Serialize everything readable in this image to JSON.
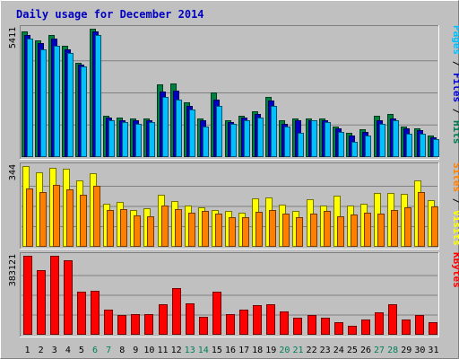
{
  "chart_data": {
    "type": "bar",
    "title": "Daily usage for December 2014",
    "categories": [
      "1",
      "2",
      "3",
      "4",
      "5",
      "6",
      "7",
      "8",
      "9",
      "10",
      "11",
      "12",
      "13",
      "14",
      "15",
      "16",
      "17",
      "18",
      "19",
      "20",
      "21",
      "22",
      "23",
      "24",
      "25",
      "26",
      "27",
      "28",
      "29",
      "30",
      "31"
    ],
    "weekend_days": [
      "6",
      "7",
      "13",
      "14",
      "20",
      "21",
      "27",
      "28"
    ],
    "panels": [
      {
        "id": "top",
        "max_label": "5411",
        "ymax": 5411,
        "legend": [
          {
            "text": "Pages",
            "color": "#00c0ff"
          },
          {
            "text": " / ",
            "color": "#000000"
          },
          {
            "text": "Files",
            "color": "#0000d8"
          },
          {
            "text": " / ",
            "color": "#000000"
          },
          {
            "text": "Hits",
            "color": "#007850"
          }
        ],
        "series": [
          {
            "name": "Hits",
            "color": "#008040",
            "values": [
              5284,
              4934,
              5143,
              4680,
              3969,
              5411,
              1734,
              1666,
              1630,
              1630,
              3056,
              3110,
              2293,
              1630,
              2718,
              1561,
              1734,
              1921,
              2524,
              1554,
              1630,
              1630,
              1630,
              1283,
              1038,
              1163,
              1734,
              1821,
              1280,
              1211,
              915
            ]
          },
          {
            "name": "Files",
            "color": "#0000c0",
            "values": [
              5143,
              4793,
              5003,
              4535,
              3881,
              5284,
              1651,
              1561,
              1561,
              1561,
              2774,
              2811,
              2146,
              1548,
              2418,
              1480,
              1651,
              1821,
              2392,
              1411,
              1568,
              1561,
              1561,
              1211,
              915,
              1078,
              1561,
              1630,
              1211,
              1140,
              845
            ]
          },
          {
            "name": "Pages",
            "color": "#00c0ff",
            "values": [
              5003,
              4535,
              4680,
              4396,
              3804,
              5143,
              1561,
              1480,
              1411,
              1480,
              2524,
              2418,
              1991,
              1283,
              2146,
              1411,
              1561,
              1651,
              2146,
              1283,
              1038,
              1561,
              1480,
              1078,
              656,
              915,
              1411,
              1561,
              970,
              970,
              775
            ]
          }
        ]
      },
      {
        "id": "middle",
        "max_label": "344",
        "ymax": 344,
        "legend": [
          {
            "text": "Sites",
            "color": "#ff8000"
          },
          {
            "text": " / ",
            "color": "#000000"
          },
          {
            "text": "Visits",
            "color": "#ffff00"
          }
        ],
        "series": [
          {
            "name": "Visits",
            "color": "#ffff00",
            "values": [
              344,
              318,
              337,
              334,
              284,
              312,
              185,
              193,
              158,
              163,
              221,
              195,
              176,
              167,
              158,
              152,
              147,
              205,
              212,
              181,
              153,
              202,
              174,
              216,
              176,
              182,
              229,
              230,
              224,
              284,
              200
            ]
          },
          {
            "name": "Sites",
            "color": "#ff8000",
            "values": [
              250,
              235,
              264,
              246,
              221,
              258,
              155,
              162,
              133,
              129,
              174,
              162,
              145,
              153,
              143,
              127,
              125,
              150,
              157,
              140,
              127,
              142,
              154,
              131,
              139,
              146,
              143,
              155,
              168,
              232,
              172
            ]
          }
        ]
      },
      {
        "id": "bottom",
        "max_label": "383121",
        "ymax": 383121,
        "legend": [
          {
            "text": "KBytes",
            "color": "#ff0000"
          }
        ],
        "series": [
          {
            "name": "KBytes",
            "color": "#ff0000",
            "values": [
              383121,
              313000,
              383121,
              359800,
              209500,
              214200,
              121300,
              95400,
              100000,
              100000,
              149100,
              227600,
              153700,
              85900,
              206900,
              98000,
              121300,
              142100,
              149100,
              112300,
              81500,
              95200,
              81500,
              59200,
              44100,
              76000,
              107300,
              149100,
              72100,
              94400,
              62500
            ]
          }
        ]
      }
    ]
  }
}
